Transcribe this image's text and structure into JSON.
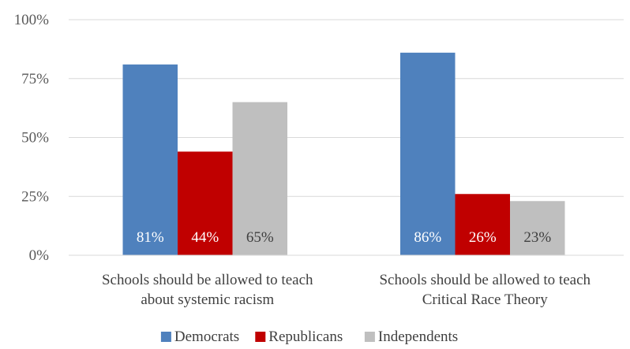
{
  "chart_data": {
    "type": "bar",
    "categories": [
      [
        "Schools should be allowed to teach",
        "about systemic racism"
      ],
      [
        "Schools should be allowed to teach",
        "Critical Race Theory"
      ]
    ],
    "series": [
      {
        "name": "Democrats",
        "values": [
          81,
          86
        ],
        "labels": [
          "81%",
          "86%"
        ],
        "color": "#4f81bd",
        "label_color": "#ffffff"
      },
      {
        "name": "Republicans",
        "values": [
          44,
          26
        ],
        "labels": [
          "44%",
          "26%"
        ],
        "color": "#c00000",
        "label_color": "#ffffff"
      },
      {
        "name": "Independents",
        "values": [
          65,
          23
        ],
        "labels": [
          "65%",
          "23%"
        ],
        "color": "#bfbfbf",
        "label_color": "#404040"
      }
    ],
    "ylim": [
      0,
      100
    ],
    "yticks": [
      {
        "value": 0,
        "label": "0%"
      },
      {
        "value": 25,
        "label": "25%"
      },
      {
        "value": 50,
        "label": "50%"
      },
      {
        "value": 75,
        "label": "75%"
      },
      {
        "value": 100,
        "label": "100%"
      }
    ],
    "grid": true,
    "legend_position": "bottom",
    "data_label_position": "inside-base"
  }
}
